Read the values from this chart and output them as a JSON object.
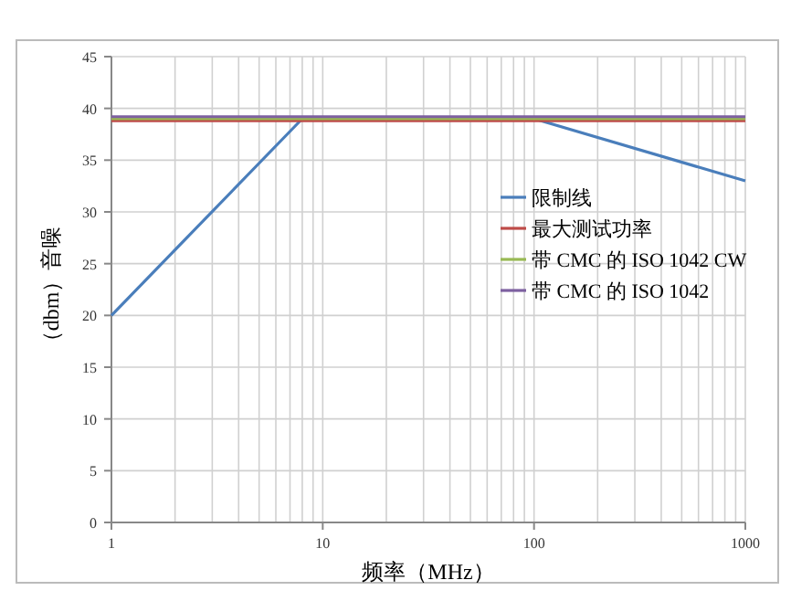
{
  "chart_data": {
    "type": "line",
    "xlabel": "频率（MHz）",
    "ylabel": "（dbm）音噪",
    "log": "x",
    "xlim": [
      1,
      1000
    ],
    "xticks": [
      1,
      10,
      100,
      1000
    ],
    "ylim": [
      0,
      45
    ],
    "yticks": [
      0,
      5,
      10,
      15,
      20,
      25,
      30,
      35,
      40,
      45
    ],
    "grid": true,
    "legend": "right",
    "marker": "none",
    "line_style": "solid",
    "series": [
      {
        "name": "限制线",
        "color": "#4a7ebb",
        "x": [
          1,
          8,
          100,
          1000
        ],
        "values": [
          20,
          39,
          39,
          33
        ]
      },
      {
        "name": "最大测试功率",
        "color": "#be4b48",
        "x": [
          1,
          1000
        ],
        "values": [
          38.8,
          38.8
        ]
      },
      {
        "name": "带 CMC 的 ISO 1042 CW",
        "color": "#98b954",
        "x": [
          1,
          1000
        ],
        "values": [
          39,
          39
        ]
      },
      {
        "name": "带 CMC 的 ISO  1042",
        "color": "#7d60a0",
        "x": [
          1,
          1000
        ],
        "values": [
          39.2,
          39.2
        ]
      }
    ]
  }
}
